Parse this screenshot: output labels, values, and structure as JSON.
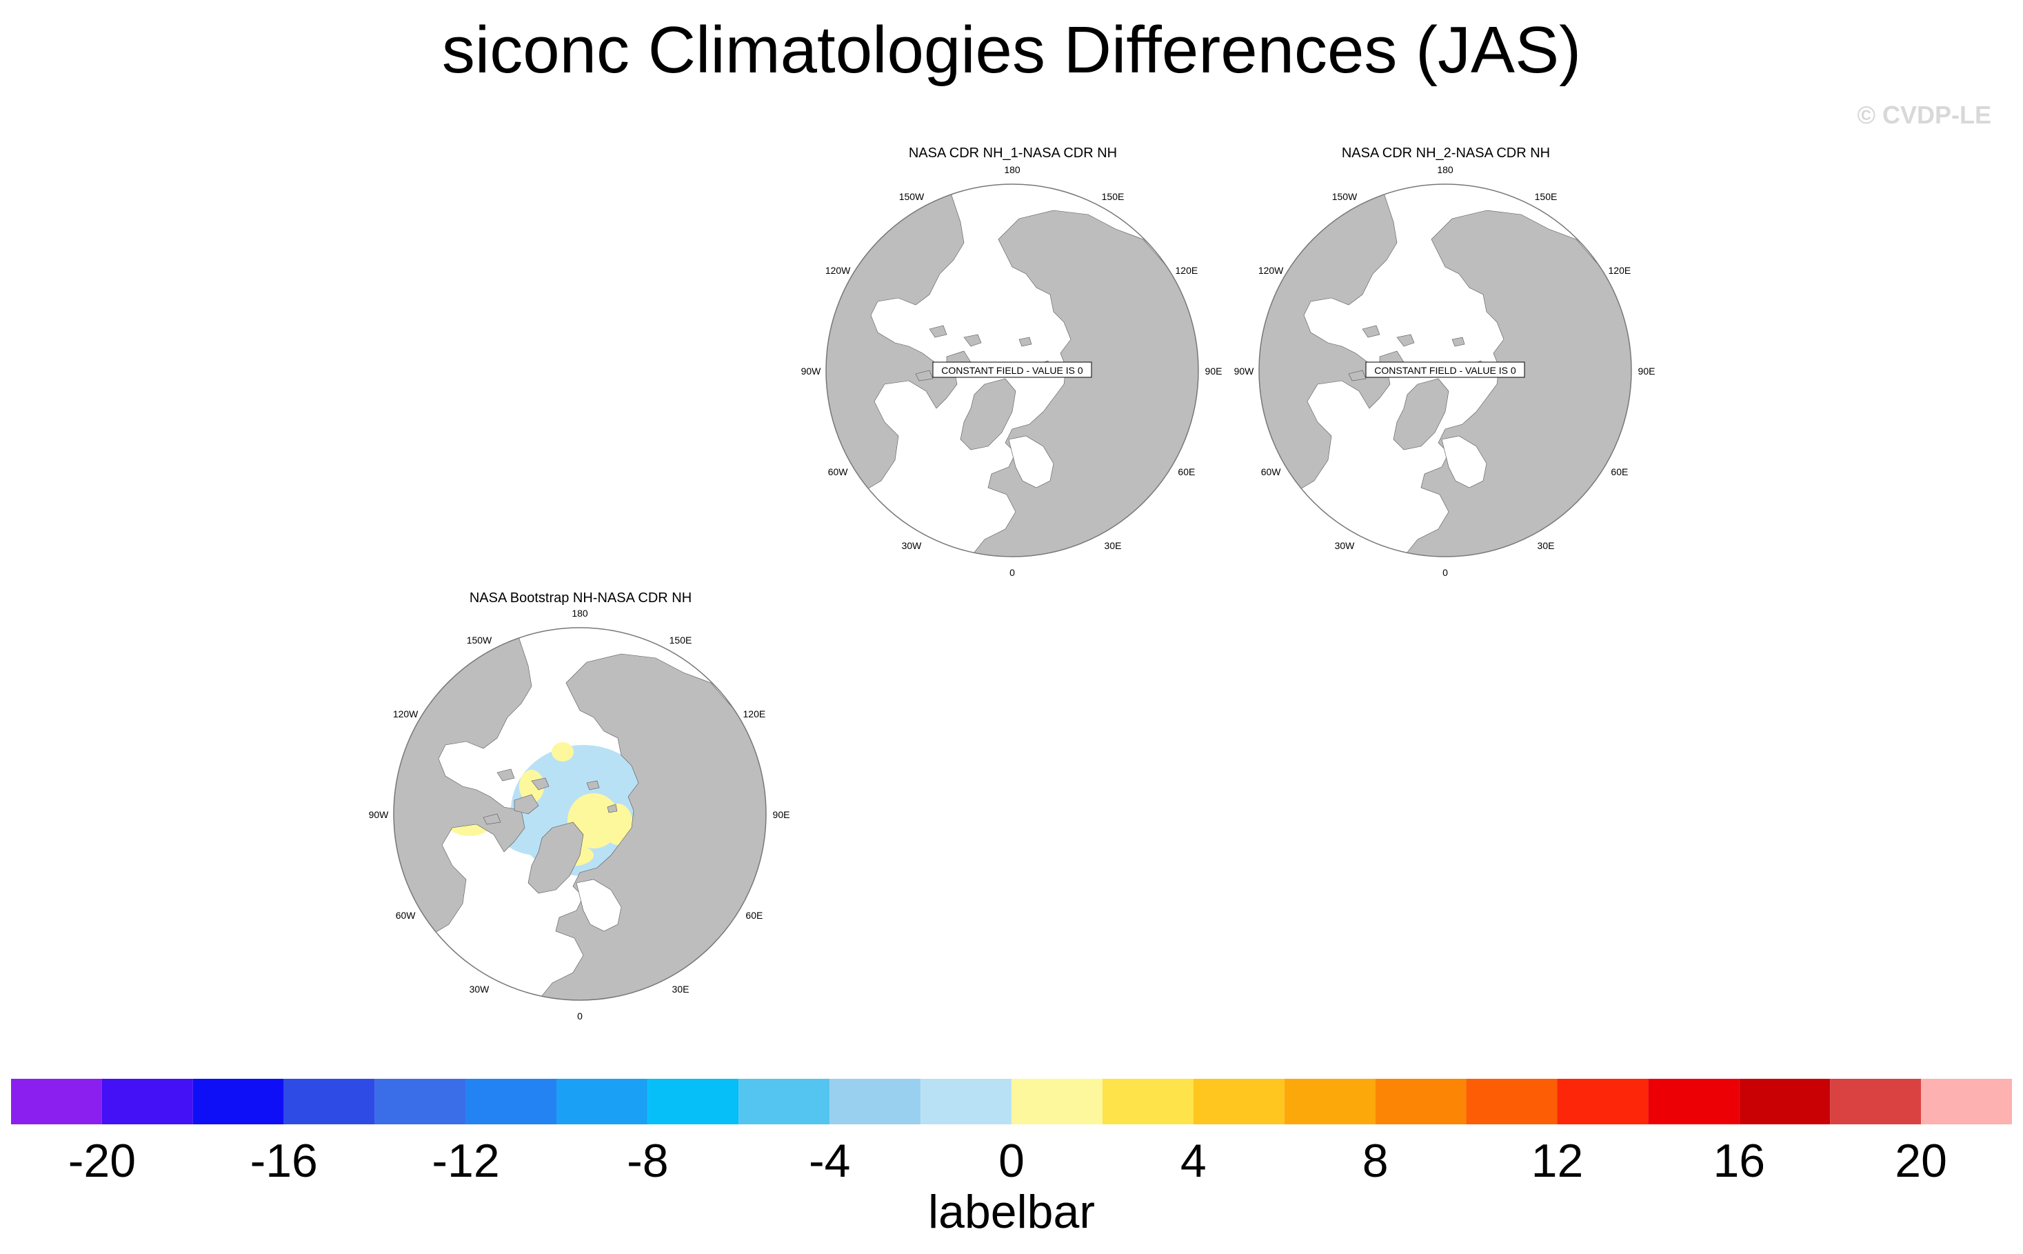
{
  "title": "siconc Climatologies Differences (JAS)",
  "copyright": "© CVDP-LE",
  "panels": [
    {
      "title": "NASA CDR NH_1-NASA CDR NH",
      "constant_label": "CONSTANT FIELD - VALUE IS 0"
    },
    {
      "title": "NASA CDR NH_2-NASA CDR NH",
      "constant_label": "CONSTANT FIELD - VALUE IS 0"
    },
    {
      "title": "NASA Bootstrap NH-NASA CDR NH"
    }
  ],
  "lon_labels": [
    "180",
    "150E",
    "120E",
    "90E",
    "60E",
    "30E",
    "0",
    "30W",
    "60W",
    "90W",
    "120W",
    "150W"
  ],
  "chart_data": {
    "type": "heatmap",
    "projection": "north polar stereographic",
    "variable": "siconc",
    "season": "JAS",
    "colorbar": {
      "label": "labelbar",
      "tick_labels": [
        "-20",
        "-16",
        "-12",
        "-8",
        "-4",
        "0",
        "4",
        "8",
        "12",
        "16",
        "20"
      ],
      "tick_values": [
        -20,
        -16,
        -12,
        -8,
        -4,
        0,
        4,
        8,
        12,
        16,
        20
      ],
      "colors": [
        "#8b1ff0",
        "#4410f5",
        "#0e0ff6",
        "#2f4be6",
        "#3a6ee8",
        "#2483f2",
        "#1aa0f5",
        "#06bff8",
        "#54c5f0",
        "#9ad0ef",
        "#b9e1f6",
        "#fef89c",
        "#fee34a",
        "#fec61f",
        "#fda80a",
        "#fd8506",
        "#fd5d05",
        "#fe2608",
        "#ec0005",
        "#c90004",
        "#da4141",
        "#feb1b1"
      ]
    },
    "panels": [
      {
        "name": "NASA CDR NH_1-NASA CDR NH",
        "constant_field": true,
        "value": 0
      },
      {
        "name": "NASA CDR NH_2-NASA CDR NH",
        "constant_field": true,
        "value": 0
      },
      {
        "name": "NASA Bootstrap NH-NASA CDR NH",
        "constant_field": false,
        "dominant_bins": [
          "-2 to 0",
          "0 to 2"
        ]
      }
    ]
  }
}
